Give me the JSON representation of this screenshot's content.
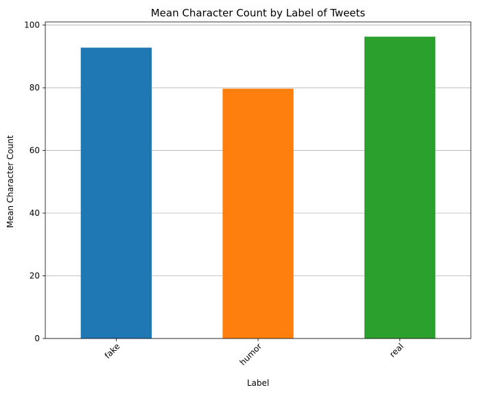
{
  "chart_data": {
    "type": "bar",
    "title": "Mean Character Count by Label of Tweets",
    "xlabel": "Label",
    "ylabel": "Mean Character Count",
    "categories": [
      "fake",
      "humor",
      "real"
    ],
    "values": [
      92.8,
      79.7,
      96.3
    ],
    "colors": [
      "#1f77b4",
      "#ff7f0e",
      "#2ca02c"
    ],
    "ylim": [
      0,
      101
    ],
    "yticks": [
      0,
      20,
      40,
      60,
      80,
      100
    ],
    "grid": "y",
    "legend": "none"
  }
}
